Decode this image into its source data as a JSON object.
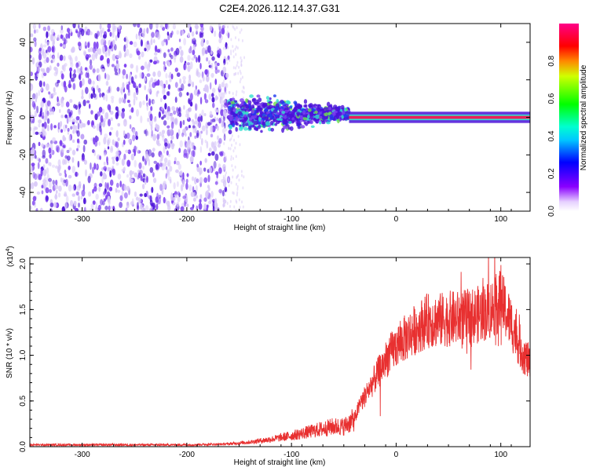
{
  "title": "C2E4.2026.112.14.37.G31",
  "colors": {
    "snr_line": "#e83030",
    "spec_dim": "#d8c8f8",
    "spec_mid": "#7a3cf0",
    "spec_strong": "#4a10d8",
    "bright_band": "#e8205a",
    "cyan": "#33e0d0",
    "green": "#6ee04a",
    "blue": "#1f3cf0"
  },
  "chart_data": [
    {
      "type": "heatmap",
      "xlabel": "Height of straight line (km)",
      "ylabel": "Frequency (Hz)",
      "xlim": [
        -350,
        128
      ],
      "ylim": [
        -50,
        50
      ],
      "x_ticks": [
        -300,
        -200,
        -100,
        0,
        100
      ],
      "y_ticks": [
        -40,
        -20,
        0,
        20,
        40
      ],
      "x_tick_labels": [
        "-300",
        "-200",
        "-100",
        "0",
        "100"
      ],
      "y_tick_labels": [
        "-40",
        "-20",
        "0",
        "20",
        "40"
      ],
      "colorbar": {
        "label": "Normalized spectral amplitude",
        "range": [
          0,
          1
        ],
        "ticks": [
          0.0,
          0.2,
          0.4,
          0.6,
          0.8
        ],
        "tick_labels": [
          "0.0",
          "0.2",
          "0.4",
          "0.6",
          "0.8"
        ]
      },
      "regions": [
        {
          "x_range": [
            -350,
            -160
          ],
          "freq_range": [
            -50,
            50
          ],
          "amplitude": 0.15
        },
        {
          "x_range": [
            -160,
            -45
          ],
          "freq_range": [
            -12,
            14
          ],
          "amplitude": 0.35
        },
        {
          "x_range": [
            -45,
            128
          ],
          "freq_center": 0,
          "amplitude": 0.95
        }
      ]
    },
    {
      "type": "line",
      "xlabel": "Height of straight line (km)",
      "ylabel": "SNR (10 * v/v)",
      "y_multiplier_label": "(x10",
      "y_multiplier_exp": "4",
      "y_multiplier_close": ")",
      "xlim": [
        -350,
        128
      ],
      "ylim": [
        0,
        2.07
      ],
      "x_ticks": [
        -300,
        -200,
        -100,
        0,
        100
      ],
      "y_ticks": [
        0.0,
        0.5,
        1.0,
        1.5,
        2.0
      ],
      "x_tick_labels": [
        "-300",
        "-200",
        "-100",
        "0",
        "100"
      ],
      "y_tick_labels": [
        "0.0",
        "0.5",
        "1.0",
        "1.5",
        "2.0"
      ],
      "series": [
        {
          "x": [
            -350,
            -300,
            -250,
            -200,
            -160,
            -140,
            -120,
            -100,
            -80,
            -60,
            -50,
            -40,
            -35,
            -30,
            -20,
            -10,
            0,
            10,
            20,
            30,
            40,
            50,
            60,
            70,
            80,
            90,
            100,
            110,
            120,
            128
          ],
          "y": [
            0.02,
            0.02,
            0.02,
            0.02,
            0.03,
            0.05,
            0.08,
            0.12,
            0.17,
            0.22,
            0.22,
            0.3,
            0.45,
            0.55,
            0.75,
            0.95,
            1.1,
            1.2,
            1.3,
            1.38,
            1.38,
            1.4,
            1.4,
            1.42,
            1.45,
            1.5,
            1.6,
            1.35,
            1.05,
            0.9
          ]
        }
      ]
    }
  ]
}
